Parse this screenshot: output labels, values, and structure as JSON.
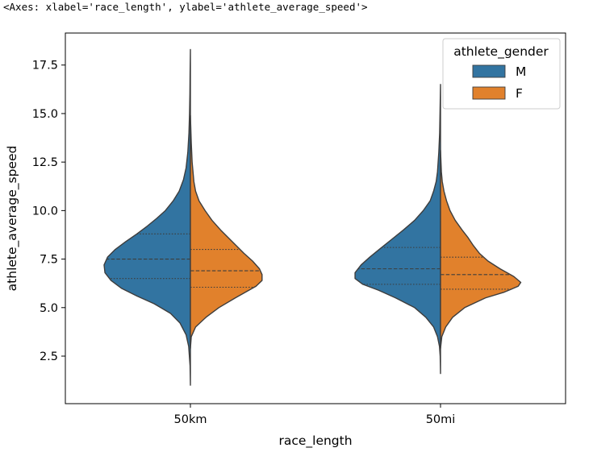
{
  "cell_output": "<Axes: xlabel='race_length', ylabel='athlete_average_speed'>",
  "colors": {
    "M": "#3274a1",
    "F": "#e1812c",
    "outline": "#3d3d3d"
  },
  "chart_data": {
    "type": "violin",
    "split": true,
    "inner": "quartile",
    "xlabel": "race_length",
    "ylabel": "athlete_average_speed",
    "ylim": [
      0.05,
      19.15
    ],
    "yticks": [
      2.5,
      5.0,
      7.5,
      10.0,
      12.5,
      15.0,
      17.5
    ],
    "ytick_labels": [
      "2.5",
      "5.0",
      "7.5",
      "10.0",
      "12.5",
      "15.0",
      "17.5"
    ],
    "categories": [
      "50km",
      "50mi"
    ],
    "legend": {
      "title": "athlete_gender",
      "entries": [
        "M",
        "F"
      ],
      "placement": "upper right"
    },
    "series": [
      {
        "name": "M",
        "violins": [
          {
            "category": "50km",
            "y_min": 1.0,
            "y_max": 18.3,
            "q1": 6.5,
            "median": 7.5,
            "q3": 8.8,
            "profile": [
              [
                1.0,
                0.0
              ],
              [
                2.0,
                0.004
              ],
              [
                3.0,
                0.02
              ],
              [
                3.6,
                0.05
              ],
              [
                4.2,
                0.12
              ],
              [
                4.7,
                0.23
              ],
              [
                5.2,
                0.42
              ],
              [
                5.6,
                0.62
              ],
              [
                6.0,
                0.8
              ],
              [
                6.4,
                0.92
              ],
              [
                6.8,
                0.99
              ],
              [
                7.2,
                1.0
              ],
              [
                7.6,
                0.96
              ],
              [
                8.0,
                0.87
              ],
              [
                8.4,
                0.75
              ],
              [
                8.8,
                0.62
              ],
              [
                9.2,
                0.5
              ],
              [
                9.6,
                0.39
              ],
              [
                10.0,
                0.29
              ],
              [
                10.5,
                0.2
              ],
              [
                11.0,
                0.13
              ],
              [
                11.6,
                0.08
              ],
              [
                12.2,
                0.05
              ],
              [
                13.0,
                0.03
              ],
              [
                14.0,
                0.017
              ],
              [
                15.0,
                0.01
              ],
              [
                16.0,
                0.006
              ],
              [
                17.0,
                0.004
              ],
              [
                18.3,
                0.0
              ]
            ]
          },
          {
            "category": "50mi",
            "y_min": 1.6,
            "y_max": 16.5,
            "q1": 6.2,
            "median": 7.0,
            "q3": 8.1,
            "profile": [
              [
                1.6,
                0.0
              ],
              [
                2.5,
                0.004
              ],
              [
                3.0,
                0.012
              ],
              [
                3.5,
                0.035
              ],
              [
                4.0,
                0.08
              ],
              [
                4.5,
                0.17
              ],
              [
                5.0,
                0.3
              ],
              [
                5.5,
                0.52
              ],
              [
                5.9,
                0.72
              ],
              [
                6.2,
                0.9
              ],
              [
                6.5,
                0.99
              ],
              [
                6.8,
                0.99
              ],
              [
                7.2,
                0.92
              ],
              [
                7.6,
                0.82
              ],
              [
                8.0,
                0.71
              ],
              [
                8.5,
                0.57
              ],
              [
                9.0,
                0.43
              ],
              [
                9.5,
                0.3
              ],
              [
                10.0,
                0.2
              ],
              [
                10.5,
                0.12
              ],
              [
                11.0,
                0.08
              ],
              [
                11.5,
                0.05
              ],
              [
                12.0,
                0.035
              ],
              [
                13.0,
                0.02
              ],
              [
                14.0,
                0.01
              ],
              [
                15.0,
                0.006
              ],
              [
                16.5,
                0.0
              ]
            ]
          }
        ]
      },
      {
        "name": "F",
        "violins": [
          {
            "category": "50km",
            "y_min": 2.9,
            "y_max": 14.9,
            "q1": 6.05,
            "median": 6.9,
            "q3": 8.0,
            "profile": [
              [
                2.9,
                0.0
              ],
              [
                3.5,
                0.01
              ],
              [
                4.0,
                0.06
              ],
              [
                4.5,
                0.18
              ],
              [
                5.0,
                0.33
              ],
              [
                5.5,
                0.52
              ],
              [
                5.8,
                0.64
              ],
              [
                6.1,
                0.76
              ],
              [
                6.4,
                0.83
              ],
              [
                6.7,
                0.83
              ],
              [
                7.0,
                0.8
              ],
              [
                7.4,
                0.72
              ],
              [
                7.8,
                0.62
              ],
              [
                8.2,
                0.53
              ],
              [
                8.6,
                0.44
              ],
              [
                9.0,
                0.35
              ],
              [
                9.5,
                0.25
              ],
              [
                10.0,
                0.17
              ],
              [
                10.5,
                0.1
              ],
              [
                11.0,
                0.06
              ],
              [
                11.5,
                0.04
              ],
              [
                12.5,
                0.02
              ],
              [
                13.5,
                0.01
              ],
              [
                14.9,
                0.0
              ]
            ]
          },
          {
            "category": "50mi",
            "y_min": 2.9,
            "y_max": 13.1,
            "q1": 5.95,
            "median": 6.7,
            "q3": 7.6,
            "profile": [
              [
                2.9,
                0.0
              ],
              [
                3.5,
                0.015
              ],
              [
                4.0,
                0.06
              ],
              [
                4.5,
                0.14
              ],
              [
                5.0,
                0.28
              ],
              [
                5.5,
                0.52
              ],
              [
                5.8,
                0.74
              ],
              [
                6.1,
                0.9
              ],
              [
                6.3,
                0.93
              ],
              [
                6.6,
                0.85
              ],
              [
                7.0,
                0.69
              ],
              [
                7.4,
                0.55
              ],
              [
                7.8,
                0.45
              ],
              [
                8.2,
                0.38
              ],
              [
                8.6,
                0.32
              ],
              [
                9.0,
                0.25
              ],
              [
                9.5,
                0.17
              ],
              [
                10.0,
                0.11
              ],
              [
                10.5,
                0.07
              ],
              [
                11.0,
                0.04
              ],
              [
                11.5,
                0.02
              ],
              [
                12.0,
                0.01
              ],
              [
                13.1,
                0.0
              ]
            ]
          }
        ]
      }
    ]
  }
}
